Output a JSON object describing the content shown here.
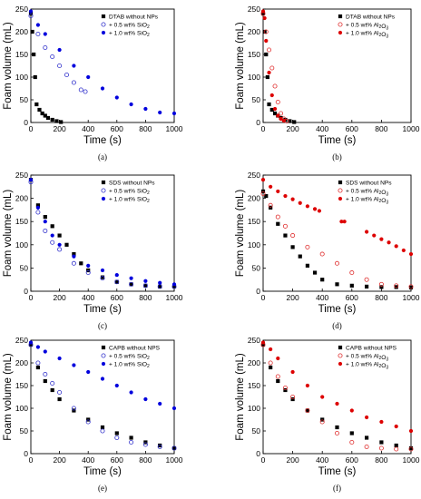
{
  "chart_data": [
    {
      "panel": "(a)",
      "type": "scatter",
      "xlabel": "Time (s)",
      "ylabel": "Foam volume (mL)",
      "xlim": [
        0,
        1000
      ],
      "ylim": [
        0,
        250
      ],
      "xticks": [
        0,
        200,
        400,
        600,
        800,
        1000
      ],
      "yticks": [
        0,
        50,
        100,
        150,
        200,
        250
      ],
      "legend_position": "top-right",
      "series": [
        {
          "name": "DTAB without NPs",
          "marker": "square-filled",
          "color": "#000000",
          "x": [
            0,
            10,
            20,
            30,
            40,
            60,
            80,
            100,
            120,
            150,
            180,
            210
          ],
          "y": [
            240,
            200,
            150,
            100,
            40,
            28,
            20,
            15,
            10,
            6,
            3,
            1
          ]
        },
        {
          "name": "+ 0.5 wt% SiO2",
          "marker": "circle-open",
          "color": "#3333cc",
          "x": [
            0,
            50,
            100,
            150,
            200,
            250,
            300,
            350,
            380
          ],
          "y": [
            235,
            195,
            165,
            145,
            125,
            105,
            88,
            72,
            68
          ]
        },
        {
          "name": "+ 1.0 wt% SiO2",
          "marker": "circle-filled",
          "color": "#0000dd",
          "x": [
            0,
            50,
            100,
            200,
            300,
            400,
            500,
            600,
            700,
            800,
            900,
            1000
          ],
          "y": [
            245,
            215,
            195,
            160,
            125,
            100,
            75,
            55,
            40,
            30,
            22,
            20
          ]
        }
      ]
    },
    {
      "panel": "(b)",
      "type": "scatter",
      "xlabel": "Time (s)",
      "ylabel": "Foam volume (mL)",
      "xlim": [
        0,
        1000
      ],
      "ylim": [
        0,
        250
      ],
      "xticks": [
        0,
        200,
        400,
        600,
        800,
        1000
      ],
      "yticks": [
        0,
        50,
        100,
        150,
        200,
        250
      ],
      "legend_position": "top-right",
      "series": [
        {
          "name": "DTAB without NPs",
          "marker": "square-filled",
          "color": "#000000",
          "x": [
            0,
            10,
            20,
            30,
            40,
            60,
            80,
            100,
            120,
            150,
            180,
            210
          ],
          "y": [
            240,
            200,
            150,
            100,
            40,
            28,
            20,
            15,
            10,
            6,
            3,
            1
          ]
        },
        {
          "name": "+ 0.5 wt% Al2O3",
          "marker": "circle-open",
          "color": "#e03030",
          "x": [
            0,
            20,
            40,
            60,
            80,
            100,
            120,
            140,
            160
          ],
          "y": [
            240,
            200,
            160,
            120,
            80,
            45,
            20,
            8,
            3
          ]
        },
        {
          "name": "+ 1.0 wt% Al2O3",
          "marker": "circle-filled",
          "color": "#dd0000",
          "x": [
            0,
            10,
            20,
            40,
            60,
            80,
            100,
            120,
            140
          ],
          "y": [
            245,
            230,
            180,
            110,
            60,
            30,
            15,
            8,
            4
          ]
        }
      ]
    },
    {
      "panel": "(c)",
      "type": "scatter",
      "xlabel": "Time (s)",
      "ylabel": "Foam volume (mL)",
      "xlim": [
        0,
        1000
      ],
      "ylim": [
        0,
        250
      ],
      "xticks": [
        0,
        200,
        400,
        600,
        800,
        1000
      ],
      "yticks": [
        0,
        50,
        100,
        150,
        200,
        250
      ],
      "legend_position": "top-right",
      "series": [
        {
          "name": "SDS without NPs",
          "marker": "square-filled",
          "color": "#000000",
          "x": [
            0,
            50,
            100,
            150,
            200,
            250,
            300,
            350,
            400,
            500,
            600,
            700,
            800,
            900,
            1000
          ],
          "y": [
            240,
            185,
            160,
            140,
            120,
            100,
            80,
            60,
            45,
            30,
            20,
            15,
            12,
            10,
            10
          ]
        },
        {
          "name": "+ 0.5 wt% SiO2",
          "marker": "circle-open",
          "color": "#3333cc",
          "x": [
            0,
            50,
            100,
            150,
            200,
            300,
            400,
            500,
            600,
            700,
            800,
            900,
            1000
          ],
          "y": [
            235,
            170,
            130,
            105,
            90,
            60,
            40,
            28,
            20,
            15,
            12,
            10,
            10
          ]
        },
        {
          "name": "+ 1.0 wt% SiO2",
          "marker": "circle-filled",
          "color": "#0000dd",
          "x": [
            0,
            50,
            100,
            150,
            200,
            300,
            400,
            500,
            600,
            700,
            800,
            900,
            1000
          ],
          "y": [
            240,
            180,
            150,
            120,
            100,
            75,
            55,
            45,
            35,
            28,
            22,
            18,
            15
          ]
        }
      ]
    },
    {
      "panel": "(d)",
      "type": "scatter",
      "xlabel": "Time (s)",
      "ylabel": "Foam volume (mL)",
      "xlim": [
        0,
        1000
      ],
      "ylim": [
        0,
        250
      ],
      "xticks": [
        0,
        200,
        400,
        600,
        800,
        1000
      ],
      "yticks": [
        0,
        50,
        100,
        150,
        200,
        250
      ],
      "legend_position": "top-right",
      "series": [
        {
          "name": "SDS without NPs",
          "marker": "square-filled",
          "color": "#000000",
          "x": [
            0,
            20,
            50,
            100,
            150,
            200,
            250,
            300,
            350,
            400,
            500,
            600,
            700,
            800,
            900,
            1000
          ],
          "y": [
            215,
            205,
            180,
            145,
            120,
            95,
            75,
            55,
            40,
            25,
            15,
            12,
            10,
            9,
            9,
            8
          ]
        },
        {
          "name": "+ 0.5 wt% Al2O3",
          "marker": "circle-open",
          "color": "#e03030",
          "x": [
            0,
            50,
            100,
            150,
            200,
            300,
            400,
            500,
            600,
            700,
            800,
            900,
            1000
          ],
          "y": [
            210,
            185,
            160,
            140,
            120,
            95,
            80,
            60,
            40,
            25,
            15,
            12,
            10
          ]
        },
        {
          "name": "+ 1.0 wt% Al2O3",
          "marker": "circle-filled",
          "color": "#dd0000",
          "x": [
            0,
            50,
            100,
            150,
            200,
            250,
            300,
            350,
            380,
            530,
            550,
            700,
            750,
            800,
            850,
            900,
            950,
            1000
          ],
          "y": [
            240,
            225,
            215,
            205,
            198,
            190,
            183,
            177,
            173,
            150,
            150,
            128,
            120,
            112,
            105,
            97,
            88,
            80
          ]
        }
      ]
    },
    {
      "panel": "(e)",
      "type": "scatter",
      "xlabel": "Time (s)",
      "ylabel": "Foam volume (mL)",
      "xlim": [
        0,
        1000
      ],
      "ylim": [
        0,
        250
      ],
      "xticks": [
        0,
        200,
        400,
        600,
        800,
        1000
      ],
      "yticks": [
        0,
        50,
        100,
        150,
        200,
        250
      ],
      "legend_position": "top-right",
      "series": [
        {
          "name": "CAPB without NPS",
          "marker": "square-filled",
          "color": "#000000",
          "x": [
            0,
            50,
            100,
            150,
            200,
            300,
            400,
            500,
            600,
            700,
            800,
            900,
            1000
          ],
          "y": [
            240,
            190,
            160,
            140,
            120,
            95,
            75,
            58,
            45,
            35,
            25,
            18,
            12
          ]
        },
        {
          "name": "+ 0.5 wt% SiO2",
          "marker": "circle-open",
          "color": "#3333cc",
          "x": [
            0,
            50,
            100,
            150,
            200,
            300,
            400,
            500,
            600,
            700,
            800,
            900,
            1000
          ],
          "y": [
            240,
            200,
            175,
            155,
            135,
            100,
            70,
            50,
            35,
            25,
            20,
            15,
            12
          ]
        },
        {
          "name": "+ 1.0 wt% SiO2",
          "marker": "circle-filled",
          "color": "#0000dd",
          "x": [
            0,
            50,
            100,
            200,
            300,
            400,
            500,
            600,
            700,
            800,
            900,
            1000
          ],
          "y": [
            245,
            235,
            225,
            210,
            195,
            180,
            165,
            150,
            135,
            120,
            110,
            100
          ]
        }
      ]
    },
    {
      "panel": "(f)",
      "type": "scatter",
      "xlabel": "Time (s)",
      "ylabel": "Foam volume (mL)",
      "xlim": [
        0,
        1000
      ],
      "ylim": [
        0,
        250
      ],
      "xticks": [
        0,
        200,
        400,
        600,
        800,
        1000
      ],
      "yticks": [
        0,
        50,
        100,
        150,
        200,
        250
      ],
      "legend_position": "top-right",
      "series": [
        {
          "name": "CAPB without NPS",
          "marker": "square-filled",
          "color": "#000000",
          "x": [
            0,
            50,
            100,
            150,
            200,
            300,
            400,
            500,
            600,
            700,
            800,
            900,
            1000
          ],
          "y": [
            240,
            190,
            160,
            140,
            120,
            95,
            75,
            58,
            45,
            35,
            25,
            18,
            12
          ]
        },
        {
          "name": "+ 0.5 wt% Al2O3",
          "marker": "circle-open",
          "color": "#e03030",
          "x": [
            0,
            50,
            100,
            150,
            200,
            300,
            400,
            500,
            600,
            700,
            800,
            900,
            1000
          ],
          "y": [
            240,
            200,
            170,
            145,
            125,
            95,
            70,
            45,
            25,
            15,
            12,
            10,
            10
          ]
        },
        {
          "name": "+ 1.0 wt% Al2O3",
          "marker": "circle-filled",
          "color": "#dd0000",
          "x": [
            0,
            50,
            100,
            200,
            300,
            400,
            500,
            600,
            700,
            800,
            900,
            1000
          ],
          "y": [
            245,
            230,
            210,
            180,
            150,
            125,
            110,
            95,
            80,
            70,
            60,
            50
          ]
        }
      ]
    }
  ]
}
